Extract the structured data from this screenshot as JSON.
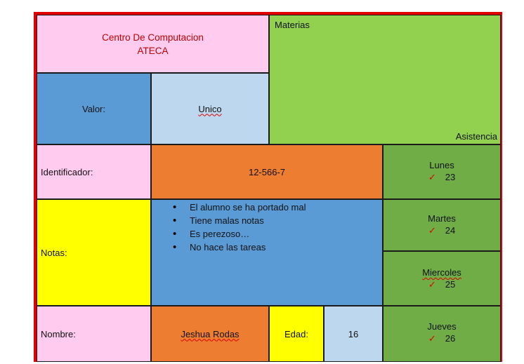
{
  "header": {
    "title_line1": "Centro De Computacion",
    "title_line2": "ATECA",
    "materias_label": "Materias",
    "asistencia_label": "Asistencia"
  },
  "valor": {
    "label": "Valor:",
    "value": "Unico"
  },
  "identificador": {
    "label": "Identificador:",
    "value": "12-566-7"
  },
  "notas": {
    "label": "Notas:",
    "items": [
      "El alumno se ha portado mal",
      "Tiene malas notas",
      "Es perezoso…",
      "No hace las tareas"
    ]
  },
  "nombre": {
    "label": "Nombre:",
    "value": "Jeshua Rodas"
  },
  "edad": {
    "label": "Edad:",
    "value": "16"
  },
  "attendance": [
    {
      "day": "Lunes",
      "mark": "✓",
      "date": "23"
    },
    {
      "day": "Martes",
      "mark": "✓",
      "date": "24"
    },
    {
      "day": "Miercoles",
      "mark": "✓",
      "date": "25"
    },
    {
      "day": "Jueves",
      "mark": "✓",
      "date": "26"
    }
  ],
  "colors": {
    "pink": "#ffccf0",
    "green": "#92d050",
    "dark_green": "#70ad47",
    "blue": "#5b9bd5",
    "light_blue": "#bdd7ee",
    "orange": "#ed7d31",
    "yellow": "#ffff00",
    "border_red": "#e00000"
  }
}
